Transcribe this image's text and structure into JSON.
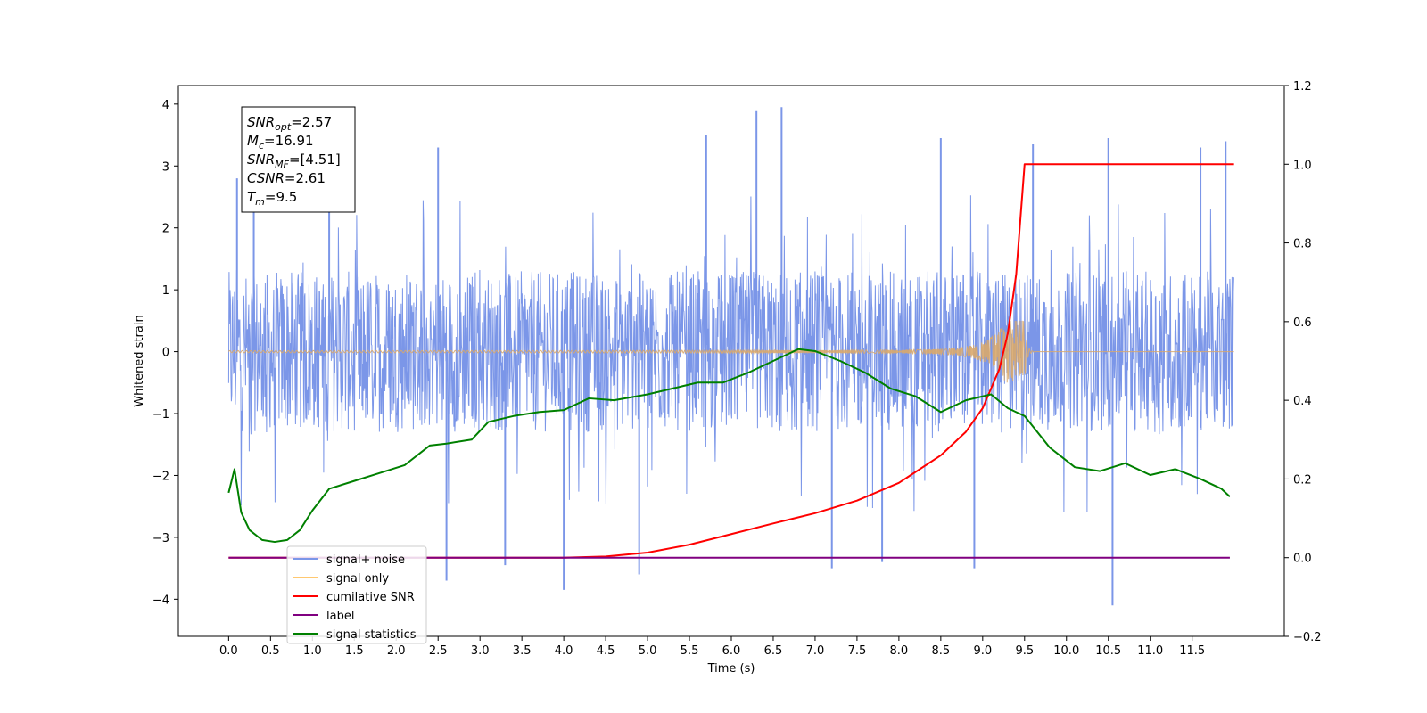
{
  "chart_data": {
    "type": "line",
    "xlabel": "Time (s)",
    "ylabel": "Whitened strain",
    "xlim": [
      -0.6,
      12.6
    ],
    "ylim": [
      -4.6,
      4.3
    ],
    "y2lim": [
      -0.2,
      1.2
    ],
    "xticks": [
      "0.0",
      "0.5",
      "1.0",
      "1.5",
      "2.0",
      "2.5",
      "3.0",
      "3.5",
      "4.0",
      "4.5",
      "5.0",
      "5.5",
      "6.0",
      "6.5",
      "7.0",
      "7.5",
      "8.0",
      "8.5",
      "9.0",
      "9.5",
      "10.0",
      "10.5",
      "11.0",
      "11.5"
    ],
    "yticks": [
      "4",
      "3",
      "2",
      "1",
      "0",
      "−1",
      "−2",
      "−3",
      "−4"
    ],
    "y2ticks": [
      "1.2",
      "1.0",
      "0.8",
      "0.6",
      "0.4",
      "0.2",
      "0.0",
      "−0.2"
    ],
    "grid": false,
    "legend_position": "lower-left",
    "noise_peaks": [
      {
        "x": 0.1,
        "y": 2.8
      },
      {
        "x": 0.3,
        "y": 2.4
      },
      {
        "x": 1.2,
        "y": 3.0
      },
      {
        "x": 2.5,
        "y": 3.3
      },
      {
        "x": 5.7,
        "y": 3.5
      },
      {
        "x": 6.3,
        "y": 3.9
      },
      {
        "x": 6.6,
        "y": 3.95
      },
      {
        "x": 8.5,
        "y": 3.45
      },
      {
        "x": 9.6,
        "y": 3.35
      },
      {
        "x": 10.5,
        "y": 3.45
      },
      {
        "x": 11.6,
        "y": 3.3
      },
      {
        "x": 11.9,
        "y": 3.4
      },
      {
        "x": 2.6,
        "y": -3.7
      },
      {
        "x": 4.0,
        "y": -3.85
      },
      {
        "x": 4.9,
        "y": -3.6
      },
      {
        "x": 7.2,
        "y": -3.5
      },
      {
        "x": 8.9,
        "y": -3.5
      },
      {
        "x": 10.55,
        "y": -4.1
      },
      {
        "x": 3.3,
        "y": -3.45
      },
      {
        "x": 7.8,
        "y": -3.4
      }
    ],
    "series": [
      {
        "name": "signal+ noise",
        "axis": "left",
        "color": "#7b96e8",
        "kind": "noise",
        "x_range": [
          0.0,
          12.0
        ],
        "core_amplitude": 1.3,
        "spike_amplitude": 2.6
      },
      {
        "name": "signal only",
        "axis": "left",
        "color": "#ffc870",
        "kind": "chirp",
        "x_range": [
          0.0,
          12.0
        ],
        "merger_time": 9.5,
        "peak_amplitude": 0.5
      },
      {
        "name": "cumilative SNR",
        "axis": "right",
        "color": "#ff0000",
        "x": [
          0.0,
          4.0,
          4.5,
          5.0,
          5.5,
          6.0,
          6.5,
          7.0,
          7.5,
          8.0,
          8.5,
          8.8,
          9.0,
          9.2,
          9.3,
          9.4,
          9.45,
          9.5,
          12.0
        ],
        "values": [
          0.0,
          0.0,
          0.003,
          0.013,
          0.033,
          0.06,
          0.087,
          0.113,
          0.145,
          0.19,
          0.26,
          0.32,
          0.38,
          0.48,
          0.57,
          0.72,
          0.86,
          1.0,
          1.0
        ]
      },
      {
        "name": "label",
        "axis": "right",
        "color": "#800080",
        "x": [
          0.0,
          11.95
        ],
        "values": [
          0.0,
          0.0
        ]
      },
      {
        "name": "signal statistics",
        "axis": "right",
        "color": "#008000",
        "x": [
          0.0,
          0.07,
          0.15,
          0.25,
          0.4,
          0.55,
          0.7,
          0.85,
          1.0,
          1.2,
          1.5,
          1.8,
          2.1,
          2.4,
          2.6,
          2.9,
          3.1,
          3.4,
          3.7,
          4.0,
          4.3,
          4.6,
          5.0,
          5.3,
          5.6,
          5.9,
          6.2,
          6.5,
          6.8,
          7.0,
          7.3,
          7.6,
          7.9,
          8.2,
          8.5,
          8.8,
          9.1,
          9.3,
          9.5,
          9.8,
          10.1,
          10.4,
          10.7,
          11.0,
          11.3,
          11.6,
          11.85,
          11.95
        ],
        "values": [
          0.165,
          0.225,
          0.115,
          0.07,
          0.045,
          0.04,
          0.045,
          0.07,
          0.12,
          0.175,
          0.195,
          0.215,
          0.235,
          0.285,
          0.29,
          0.3,
          0.345,
          0.36,
          0.37,
          0.375,
          0.405,
          0.4,
          0.415,
          0.43,
          0.445,
          0.445,
          0.47,
          0.5,
          0.53,
          0.525,
          0.5,
          0.47,
          0.43,
          0.41,
          0.37,
          0.4,
          0.415,
          0.38,
          0.36,
          0.28,
          0.23,
          0.22,
          0.24,
          0.21,
          0.225,
          0.2,
          0.175,
          0.155
        ]
      }
    ]
  },
  "annotation": {
    "lines": [
      {
        "base": "SNR",
        "sub": "opt",
        "rest": "=2.57"
      },
      {
        "base": "M",
        "sub": "c",
        "rest": "=16.91"
      },
      {
        "base": "SNR",
        "sub": "MF",
        "rest": "=[4.51]"
      },
      {
        "base": "CSNR",
        "sub": "",
        "rest": "=2.61"
      },
      {
        "base": "T",
        "sub": "m",
        "rest": "=9.5"
      }
    ]
  },
  "legend": {
    "entries": [
      {
        "label": "signal+ noise",
        "color": "#7b96e8"
      },
      {
        "label": "signal only",
        "color": "#ffc870"
      },
      {
        "label": "cumilative SNR",
        "color": "#ff0000"
      },
      {
        "label": "label",
        "color": "#800080"
      },
      {
        "label": "signal statistics",
        "color": "#008000"
      }
    ]
  }
}
